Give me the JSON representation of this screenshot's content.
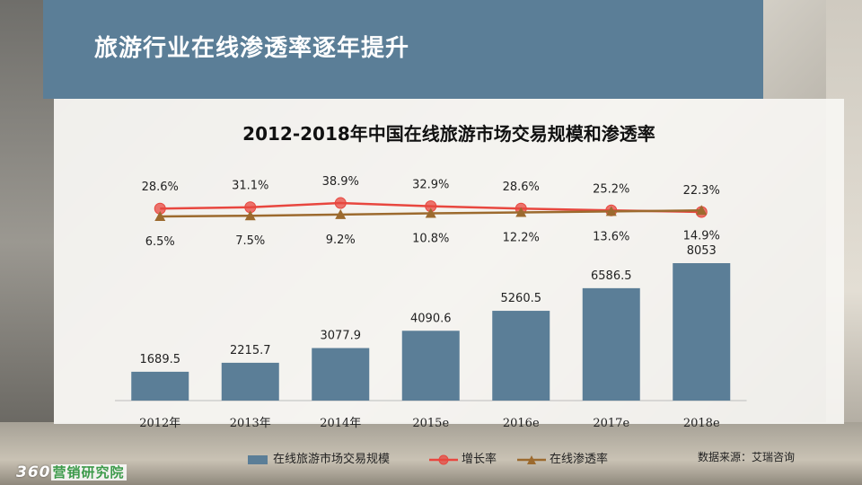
{
  "header": {
    "title": "旅游行业在线渗透率逐年提升"
  },
  "chart_data": {
    "type": "bar",
    "title": "2012-2018年中国在线旅游市场交易规模和渗透率",
    "categories": [
      "2012年",
      "2013年",
      "2014年",
      "2015e",
      "2016e",
      "2017e",
      "2018e"
    ],
    "series": [
      {
        "name": "在线旅游市场交易规模",
        "type": "bar",
        "values": [
          1689.5,
          2215.7,
          3077.9,
          4090.6,
          5260.5,
          6586.5,
          8053
        ],
        "labels": [
          "1689.5",
          "2215.7",
          "3077.9",
          "4090.6",
          "5260.5",
          "6586.5",
          "8053"
        ],
        "color": "#5b7e97"
      },
      {
        "name": "增长率",
        "type": "line",
        "values": [
          28.6,
          31.1,
          38.9,
          32.9,
          28.6,
          25.2,
          22.3
        ],
        "labels": [
          "28.6%",
          "31.1%",
          "38.9%",
          "32.9%",
          "28.6%",
          "25.2%",
          "22.3%"
        ],
        "color": "#e8473f"
      },
      {
        "name": "在线渗透率",
        "type": "line",
        "values": [
          6.5,
          7.5,
          9.2,
          10.8,
          12.2,
          13.6,
          14.9
        ],
        "labels": [
          "6.5%",
          "7.5%",
          "9.2%",
          "10.8%",
          "12.2%",
          "13.6%",
          "14.9%"
        ],
        "color": "#9c6a2e"
      }
    ],
    "legend_position": "bottom"
  },
  "source": "数据来源：艾瑞咨询",
  "logo": {
    "number": "360",
    "text": "营销研究院"
  }
}
